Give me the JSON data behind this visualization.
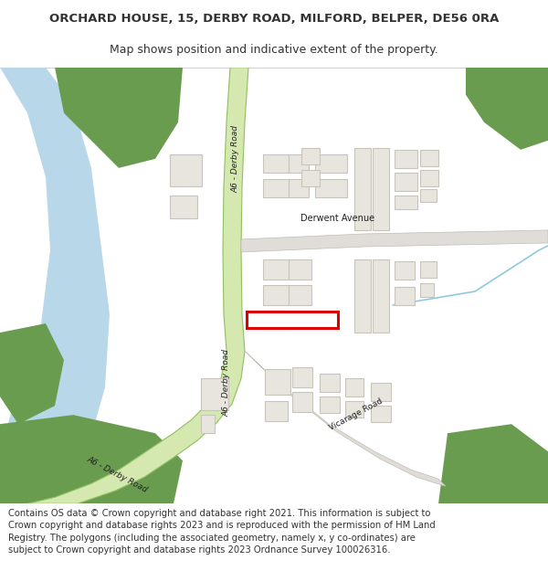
{
  "title_line1": "ORCHARD HOUSE, 15, DERBY ROAD, MILFORD, BELPER, DE56 0RA",
  "title_line2": "Map shows position and indicative extent of the property.",
  "footer_text": "Contains OS data © Crown copyright and database right 2021. This information is subject to Crown copyright and database rights 2023 and is reproduced with the permission of HM Land Registry. The polygons (including the associated geometry, namely x, y co-ordinates) are subject to Crown copyright and database rights 2023 Ordnance Survey 100026316.",
  "text_color": "#333333",
  "title_fontsize": 9.5,
  "footer_fontsize": 7.2,
  "map_bg": "#f8f7f4",
  "river_color": "#b8d8ea",
  "road_green_fill": "#d4e8b0",
  "road_green_edge": "#8fc060",
  "road_grey_fill": "#e0ddd8",
  "road_grey_edge": "#c0bcb5",
  "building_fill": "#e8e4de",
  "building_edge": "#c8c4bc",
  "green_fill": "#6a9c50",
  "highlight_fill": "#ffffff",
  "highlight_edge": "#dd0000",
  "water_line": "#90c8e0",
  "title_border": "#cccccc"
}
